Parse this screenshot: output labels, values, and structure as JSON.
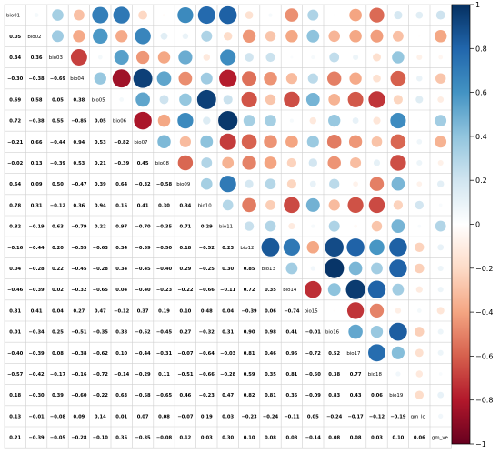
{
  "chart_data": {
    "type": "heatmap",
    "variables": [
      "bio01",
      "bio02",
      "bio03",
      "bio04",
      "bio05",
      "bio06",
      "bio07",
      "bio08",
      "bio09",
      "bio10",
      "bio11",
      "bio12",
      "bio13",
      "bio14",
      "bio15",
      "bio16",
      "bio17",
      "bio18",
      "bio19",
      "gm_lc",
      "gm_ve"
    ],
    "matrix": [
      [
        1,
        0.05,
        0.34,
        -0.3,
        0.69,
        0.72,
        -0.21,
        -0.02,
        0.64,
        0.78,
        0.82,
        -0.16,
        0.04,
        -0.46,
        0.31,
        0.01,
        -0.4,
        -0.57,
        0.18,
        0.13,
        0.21
      ],
      [
        0.05,
        1,
        0.36,
        -0.38,
        0.58,
        -0.38,
        0.66,
        0.13,
        0.09,
        0.31,
        -0.19,
        -0.44,
        -0.28,
        -0.39,
        0.41,
        -0.34,
        -0.39,
        -0.42,
        -0.3,
        -0.01,
        -0.39
      ],
      [
        0.34,
        0.36,
        1,
        -0.69,
        0.05,
        0.55,
        -0.44,
        -0.39,
        0.5,
        -0.12,
        0.63,
        0.2,
        0.22,
        0.02,
        0.04,
        0.25,
        0.08,
        -0.17,
        0.39,
        -0.08,
        -0.05
      ],
      [
        -0.3,
        -0.38,
        -0.69,
        1,
        0.38,
        -0.85,
        0.94,
        0.53,
        -0.47,
        0.36,
        -0.79,
        -0.55,
        -0.45,
        -0.32,
        0.27,
        -0.51,
        -0.38,
        -0.16,
        -0.6,
        0.09,
        -0.28
      ],
      [
        0.69,
        0.58,
        0.05,
        0.38,
        1,
        0.05,
        0.53,
        0.21,
        0.39,
        0.94,
        0.22,
        -0.63,
        -0.28,
        -0.65,
        0.47,
        -0.35,
        -0.62,
        -0.72,
        -0.22,
        0.14,
        -0.1
      ],
      [
        0.72,
        -0.38,
        0.55,
        -0.85,
        0.05,
        1,
        -0.82,
        -0.39,
        0.64,
        0.15,
        0.97,
        0.34,
        0.34,
        0.04,
        -0.12,
        0.38,
        0.1,
        -0.14,
        0.63,
        0.01,
        0.35
      ],
      [
        -0.21,
        0.66,
        -0.44,
        0.94,
        0.53,
        -0.82,
        1,
        0.45,
        -0.32,
        0.41,
        -0.7,
        -0.59,
        -0.45,
        -0.4,
        0.37,
        -0.52,
        -0.44,
        -0.29,
        -0.58,
        0.07,
        -0.35
      ],
      [
        -0.02,
        0.13,
        -0.39,
        0.53,
        0.21,
        -0.39,
        0.45,
        1,
        -0.58,
        0.3,
        -0.35,
        -0.5,
        -0.4,
        -0.23,
        0.19,
        -0.45,
        -0.31,
        0.11,
        -0.65,
        0.08,
        -0.08
      ],
      [
        0.64,
        0.09,
        0.5,
        -0.47,
        0.39,
        0.64,
        -0.32,
        -0.58,
        1,
        0.34,
        0.71,
        0.18,
        0.29,
        -0.22,
        0.1,
        0.27,
        -0.07,
        -0.51,
        0.46,
        -0.07,
        0.12
      ],
      [
        0.78,
        0.31,
        -0.12,
        0.36,
        0.94,
        0.15,
        0.41,
        0.3,
        0.34,
        1,
        0.29,
        -0.52,
        -0.25,
        -0.66,
        0.48,
        -0.32,
        -0.64,
        -0.66,
        -0.23,
        0.19,
        0.03
      ],
      [
        0.82,
        -0.19,
        0.63,
        -0.79,
        0.22,
        0.97,
        -0.7,
        -0.35,
        0.71,
        0.29,
        1,
        0.23,
        0.3,
        -0.11,
        0.04,
        0.31,
        -0.03,
        -0.28,
        0.47,
        0.03,
        0.3
      ],
      [
        -0.16,
        -0.44,
        0.2,
        -0.55,
        -0.63,
        0.34,
        -0.59,
        -0.5,
        0.18,
        -0.52,
        0.23,
        1,
        0.85,
        0.72,
        -0.39,
        0.9,
        0.81,
        0.59,
        0.82,
        -0.23,
        0.1
      ],
      [
        0.04,
        -0.28,
        0.22,
        -0.45,
        -0.28,
        0.34,
        -0.45,
        -0.4,
        0.29,
        -0.25,
        0.3,
        0.85,
        1,
        0.35,
        0.06,
        0.98,
        0.46,
        0.35,
        0.81,
        -0.24,
        0.08
      ],
      [
        -0.46,
        -0.39,
        0.02,
        -0.32,
        -0.65,
        0.04,
        -0.4,
        -0.23,
        -0.22,
        -0.66,
        -0.11,
        0.72,
        0.35,
        1,
        -0.74,
        0.41,
        0.96,
        0.81,
        0.35,
        -0.11,
        0.08
      ],
      [
        0.31,
        0.41,
        0.04,
        0.27,
        0.47,
        -0.12,
        0.37,
        0.19,
        0.1,
        0.48,
        0.04,
        -0.39,
        0.06,
        -0.74,
        1,
        -0.01,
        -0.72,
        -0.5,
        -0.09,
        0.05,
        -0.14
      ],
      [
        0.01,
        -0.34,
        0.25,
        -0.51,
        -0.35,
        0.38,
        -0.52,
        -0.45,
        0.27,
        -0.32,
        0.31,
        0.9,
        0.98,
        0.41,
        -0.01,
        1,
        0.52,
        0.38,
        0.83,
        -0.24,
        0.08
      ],
      [
        -0.4,
        -0.39,
        0.08,
        -0.38,
        -0.62,
        0.1,
        -0.44,
        -0.31,
        -0.07,
        -0.64,
        -0.03,
        0.81,
        0.46,
        0.96,
        -0.72,
        0.52,
        1,
        0.77,
        0.43,
        -0.17,
        0.08
      ],
      [
        -0.57,
        -0.42,
        -0.17,
        -0.16,
        -0.72,
        -0.14,
        -0.29,
        0.11,
        -0.51,
        -0.66,
        -0.28,
        0.59,
        0.35,
        0.81,
        -0.5,
        0.38,
        0.77,
        1,
        0.06,
        -0.12,
        0.03
      ],
      [
        0.18,
        -0.3,
        0.39,
        -0.6,
        -0.22,
        0.63,
        -0.58,
        -0.65,
        0.46,
        -0.23,
        0.47,
        0.82,
        0.81,
        0.35,
        -0.09,
        0.83,
        0.43,
        0.06,
        1,
        -0.19,
        0.1
      ],
      [
        0.13,
        -0.01,
        -0.08,
        0.09,
        0.14,
        0.01,
        0.07,
        0.08,
        -0.07,
        0.19,
        0.03,
        -0.23,
        -0.24,
        -0.11,
        0.05,
        -0.24,
        -0.17,
        -0.12,
        -0.19,
        1,
        0.06
      ],
      [
        0.21,
        -0.39,
        -0.05,
        -0.28,
        -0.1,
        0.35,
        -0.35,
        -0.08,
        0.12,
        0.03,
        0.3,
        0.1,
        0.08,
        0.08,
        -0.14,
        0.08,
        0.08,
        0.03,
        0.1,
        0.06,
        1
      ]
    ],
    "lower_triangle": "numbers",
    "upper_triangle": "circles",
    "color_scale": {
      "min": -1,
      "max": 1,
      "ticks": [
        -1,
        -0.8,
        -0.6,
        -0.4,
        -0.2,
        0,
        0.2,
        0.4,
        0.6,
        0.8,
        1
      ],
      "tick_labels": [
        "−1",
        "−0.8",
        "−0.6",
        "−0.4",
        "−0.2",
        "0",
        "0.2",
        "0.4",
        "0.6",
        "0.8",
        "1"
      ],
      "colors": [
        "#67001f",
        "#b2182b",
        "#d6604d",
        "#f4a582",
        "#fddbc7",
        "#ffffff",
        "#d1e5f0",
        "#92c5de",
        "#4393c3",
        "#2166ac",
        "#053061"
      ]
    },
    "grid": true,
    "legend": "right"
  }
}
